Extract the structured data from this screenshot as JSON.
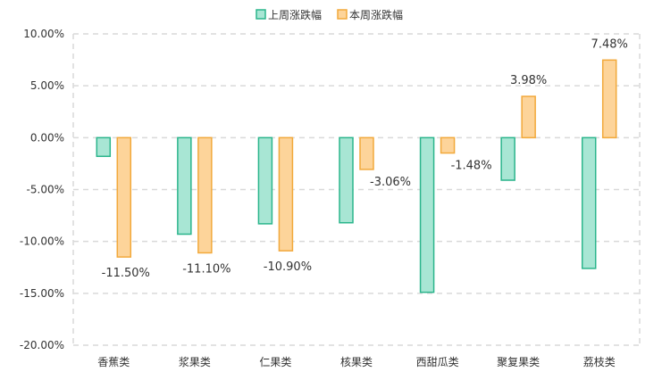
{
  "chart_data": {
    "type": "bar",
    "categories": [
      "香蕉类",
      "浆果类",
      "仁果类",
      "核果类",
      "西甜瓜类",
      "聚复果类",
      "荔枝类"
    ],
    "series": [
      {
        "name": "上周涨跌幅",
        "values": [
          -1.8,
          -9.3,
          -8.3,
          -8.2,
          -14.9,
          -4.1,
          -12.6
        ],
        "fill": "#a8e6d4",
        "stroke": "#2bb58c"
      },
      {
        "name": "本周涨跌幅",
        "values": [
          -11.5,
          -11.1,
          -10.9,
          -3.06,
          -1.48,
          3.98,
          7.48
        ],
        "fill": "#fdd49a",
        "stroke": "#f2a93b"
      }
    ],
    "data_labels": [
      "-11.50%",
      "-11.10%",
      "-10.90%",
      "-3.06%",
      "-1.48%",
      "3.98%",
      "7.48%"
    ],
    "y_ticks": [
      10,
      5,
      0,
      -5,
      -10,
      -15,
      -20
    ],
    "y_tick_labels": [
      "10.00%",
      "5.00%",
      "0.00%",
      "-5.00%",
      "-10.00%",
      "-15.00%",
      "-20.00%"
    ],
    "ylim": [
      -20,
      10
    ],
    "grid": "dashed",
    "legend_position": "top-center",
    "grid_color": "#d9d9d9"
  }
}
